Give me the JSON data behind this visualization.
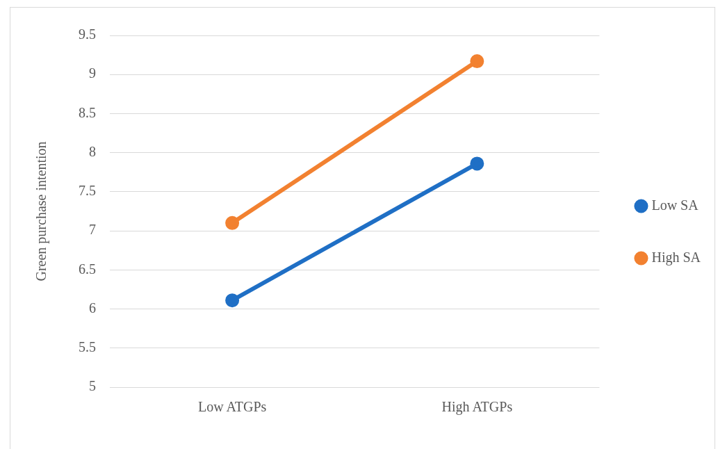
{
  "chart_data": {
    "type": "line",
    "ylabel": "Green purchase intention",
    "categories": [
      "Low ATGPs",
      "High ATGPs"
    ],
    "series": [
      {
        "name": "Low SA",
        "color": "#1f6fc5",
        "values": [
          6.11,
          7.86
        ]
      },
      {
        "name": "High SA",
        "color": "#f28130",
        "values": [
          7.1,
          9.17
        ]
      }
    ],
    "ylim": [
      5,
      9.5
    ],
    "yticks": [
      5,
      5.5,
      6,
      6.5,
      7,
      7.5,
      8,
      8.5,
      9,
      9.5
    ],
    "grid": "y",
    "legend": "right",
    "marker": "circle",
    "line_style": "solid"
  }
}
